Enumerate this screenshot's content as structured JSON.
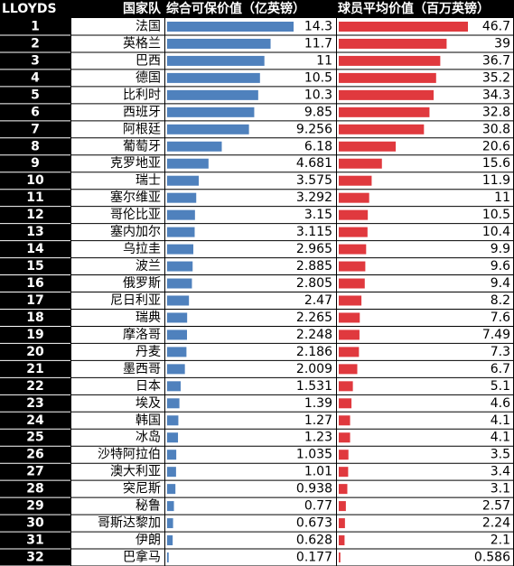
{
  "header": {
    "rank": "LLOYDS",
    "country": "国家队",
    "insured_value": "综合可保价值（亿英镑）",
    "player_value": "球员平均价值（百万英镑）"
  },
  "colors": {
    "header_bg": "#000000",
    "rank_bg": "#000000",
    "insured_bar": "#4f81bd",
    "player_bar": "#e0393e"
  },
  "chart_data": {
    "type": "table",
    "columns": [
      "LLOYDS",
      "国家队",
      "综合可保价值（亿英镑）",
      "球员平均价值（百万英镑）"
    ],
    "rows": [
      {
        "rank": "1",
        "country": "法国",
        "insured": "14.3",
        "player": "46.7"
      },
      {
        "rank": "2",
        "country": "英格兰",
        "insured": "11.7",
        "player": "39"
      },
      {
        "rank": "3",
        "country": "巴西",
        "insured": "11",
        "player": "36.7"
      },
      {
        "rank": "4",
        "country": "德国",
        "insured": "10.5",
        "player": "35.2"
      },
      {
        "rank": "5",
        "country": "比利时",
        "insured": "10.3",
        "player": "34.3"
      },
      {
        "rank": "6",
        "country": "西班牙",
        "insured": "9.85",
        "player": "32.8"
      },
      {
        "rank": "7",
        "country": "阿根廷",
        "insured": "9.256",
        "player": "30.8"
      },
      {
        "rank": "8",
        "country": "葡萄牙",
        "insured": "6.18",
        "player": "20.6"
      },
      {
        "rank": "9",
        "country": "克罗地亚",
        "insured": "4.681",
        "player": "15.6"
      },
      {
        "rank": "10",
        "country": "瑞士",
        "insured": "3.575",
        "player": "11.9"
      },
      {
        "rank": "11",
        "country": "塞尔维亚",
        "insured": "3.292",
        "player": "11"
      },
      {
        "rank": "12",
        "country": "哥伦比亚",
        "insured": "3.15",
        "player": "10.5"
      },
      {
        "rank": "13",
        "country": "塞内加尔",
        "insured": "3.115",
        "player": "10.4"
      },
      {
        "rank": "14",
        "country": "乌拉圭",
        "insured": "2.965",
        "player": "9.9"
      },
      {
        "rank": "15",
        "country": "波兰",
        "insured": "2.885",
        "player": "9.6"
      },
      {
        "rank": "16",
        "country": "俄罗斯",
        "insured": "2.805",
        "player": "9.4"
      },
      {
        "rank": "17",
        "country": "尼日利亚",
        "insured": "2.47",
        "player": "8.2"
      },
      {
        "rank": "18",
        "country": "瑞典",
        "insured": "2.265",
        "player": "7.6"
      },
      {
        "rank": "19",
        "country": "摩洛哥",
        "insured": "2.248",
        "player": "7.49"
      },
      {
        "rank": "20",
        "country": "丹麦",
        "insured": "2.186",
        "player": "7.3"
      },
      {
        "rank": "21",
        "country": "墨西哥",
        "insured": "2.009",
        "player": "6.7"
      },
      {
        "rank": "22",
        "country": "日本",
        "insured": "1.531",
        "player": "5.1"
      },
      {
        "rank": "23",
        "country": "埃及",
        "insured": "1.39",
        "player": "4.6"
      },
      {
        "rank": "24",
        "country": "韩国",
        "insured": "1.27",
        "player": "4.1"
      },
      {
        "rank": "25",
        "country": "冰岛",
        "insured": "1.23",
        "player": "4.1"
      },
      {
        "rank": "26",
        "country": "沙特阿拉伯",
        "insured": "1.035",
        "player": "3.5"
      },
      {
        "rank": "27",
        "country": "澳大利亚",
        "insured": "1.01",
        "player": "3.4"
      },
      {
        "rank": "28",
        "country": "突尼斯",
        "insured": "0.938",
        "player": "3.1"
      },
      {
        "rank": "29",
        "country": "秘鲁",
        "insured": "0.77",
        "player": "2.57"
      },
      {
        "rank": "30",
        "country": "哥斯达黎加",
        "insured": "0.673",
        "player": "2.24"
      },
      {
        "rank": "31",
        "country": "伊朗",
        "insured": "0.628",
        "player": "2.1"
      },
      {
        "rank": "32",
        "country": "巴拿马",
        "insured": "0.177",
        "player": "0.586"
      }
    ],
    "insured_max": 14.3,
    "player_max": 46.7
  }
}
